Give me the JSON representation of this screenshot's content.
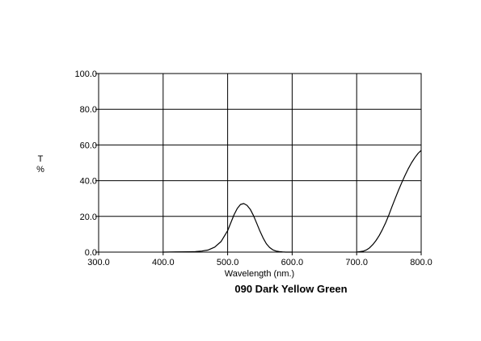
{
  "chart_data": {
    "type": "line",
    "title": "090 Dark Yellow Green",
    "xlabel": "Wavelength (nm.)",
    "ylabel": "T\n%",
    "xlim": [
      300,
      800
    ],
    "ylim": [
      0,
      100
    ],
    "x_ticks": [
      "300.0",
      "400.0",
      "500.0",
      "600.0",
      "700.0",
      "800.0"
    ],
    "y_ticks": [
      "0.0",
      "20.0",
      "40.0",
      "60.0",
      "80.0",
      "100.0"
    ],
    "grid": true,
    "series": [
      {
        "segments": [
          {
            "x": [
              400,
              420,
              440,
              450,
              460,
              470,
              480,
              490,
              500,
              505,
              510,
              515,
              520,
              525,
              530,
              535,
              540,
              545,
              550,
              555,
              560,
              565,
              570,
              575,
              580,
              585,
              590,
              600
            ],
            "y": [
              0.0,
              0.1,
              0.2,
              0.3,
              0.6,
              1.2,
              2.8,
              6.0,
              12.0,
              16.5,
              21.0,
              24.5,
              26.7,
              27.2,
              26.2,
              24.0,
              20.5,
              16.2,
              11.8,
              7.9,
              4.7,
              2.6,
              1.3,
              0.6,
              0.3,
              0.1,
              0.0,
              0.0
            ]
          },
          {
            "x": [
              700,
              710,
              715,
              720,
              725,
              730,
              735,
              740,
              745,
              750,
              755,
              760,
              765,
              770,
              775,
              780,
              785,
              790,
              795,
              800
            ],
            "y": [
              0.0,
              0.5,
              1.2,
              2.4,
              4.2,
              6.5,
              9.3,
              12.7,
              16.5,
              20.9,
              25.7,
              30.3,
              34.8,
              39.0,
              43.0,
              46.7,
              50.0,
              52.8,
              55.2,
              57.0
            ]
          }
        ]
      }
    ]
  }
}
